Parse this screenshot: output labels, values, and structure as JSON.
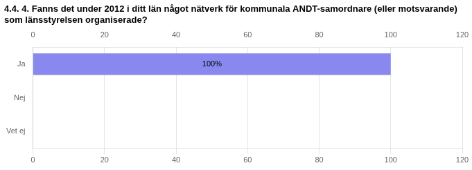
{
  "chart_data": {
    "type": "bar",
    "orientation": "horizontal",
    "title": [
      "4.4. 4. Fanns det under 2012 i ditt län något nätverk för kommunala ANDT-samordnare (eller motsvarande)",
      "som länsstyrelsen organiserade?"
    ],
    "categories": [
      "Ja",
      "Nej",
      "Vet ej"
    ],
    "values": [
      100,
      0,
      0
    ],
    "data_labels": true,
    "value_labels": [
      "100%",
      null,
      null
    ],
    "color": "#8888ee",
    "xlim": [
      0,
      120
    ],
    "xticks": [
      0,
      20,
      40,
      60,
      80,
      100,
      120
    ],
    "grid": true
  }
}
